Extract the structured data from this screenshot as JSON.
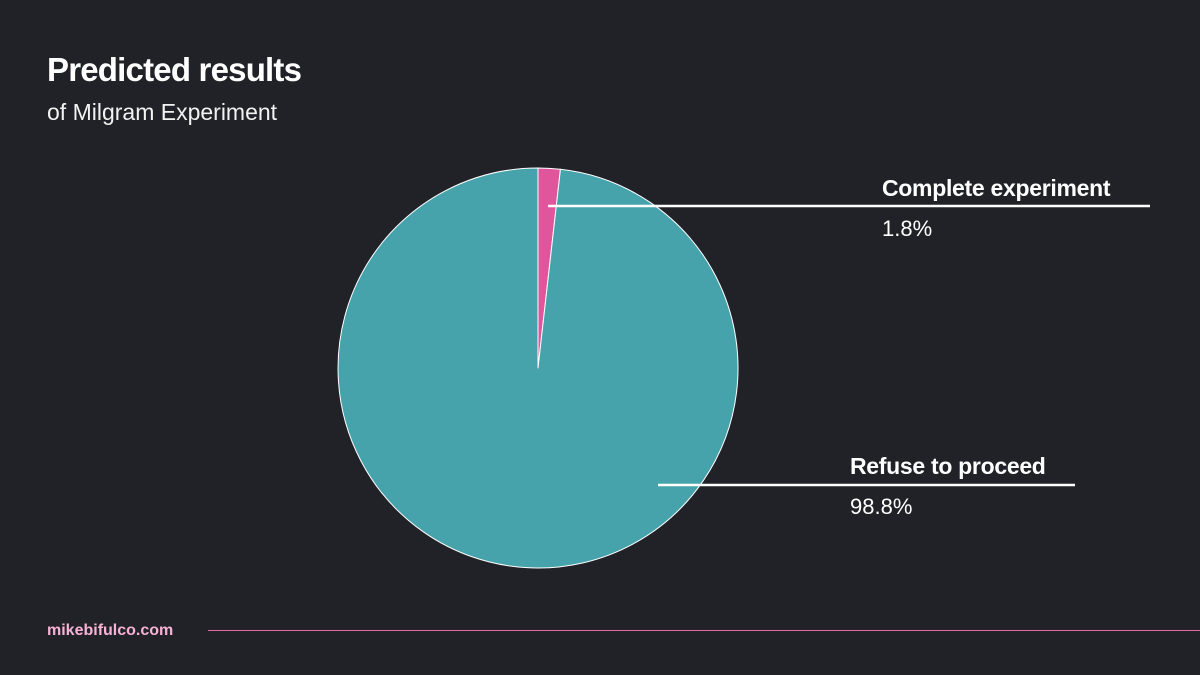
{
  "header": {
    "title": "Predicted results",
    "subtitle": "of Milgram Experiment"
  },
  "footer": {
    "brand": "mikebifulco.com"
  },
  "colors": {
    "background": "#212227",
    "slice_primary": "#46a3ab",
    "slice_accent": "#e0569c",
    "footer_accent": "#e06aa6"
  },
  "chart_data": {
    "type": "pie",
    "title": "Predicted results",
    "subtitle": "of Milgram Experiment",
    "slices": [
      {
        "label": "Complete experiment",
        "value": 1.8,
        "value_label": "1.8%",
        "color": "#e0569c"
      },
      {
        "label": "Refuse to proceed",
        "value": 98.8,
        "value_label": "98.8%",
        "color": "#46a3ab"
      }
    ]
  }
}
